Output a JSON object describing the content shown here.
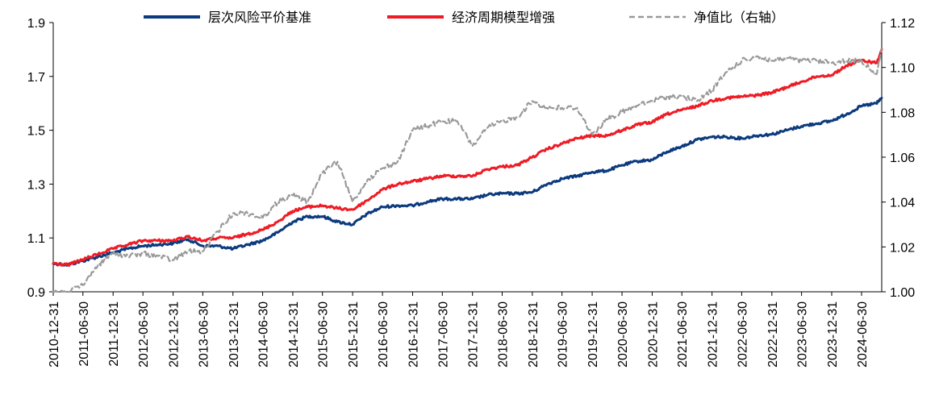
{
  "chart_data": {
    "type": "line",
    "title": "",
    "xlabel": "",
    "ylabel": "",
    "xlim": [
      "2010-12-31",
      "2024-10-31"
    ],
    "ylim": [
      0.9,
      1.9
    ],
    "y2lim": [
      1.0,
      1.12
    ],
    "grid": false,
    "legend_position": "top",
    "y_ticks": [
      "0.9",
      "1.1",
      "1.3",
      "1.5",
      "1.7",
      "1.9"
    ],
    "y2_ticks": [
      "1.00",
      "1.02",
      "1.04",
      "1.06",
      "1.08",
      "1.10",
      "1.12"
    ],
    "x_ticks": [
      "2010-12-31",
      "2011-06-30",
      "2011-12-31",
      "2012-06-30",
      "2012-12-31",
      "2013-06-30",
      "2013-12-31",
      "2014-06-30",
      "2014-12-31",
      "2015-06-30",
      "2015-12-31",
      "2016-06-30",
      "2016-12-31",
      "2017-06-30",
      "2017-12-31",
      "2018-06-30",
      "2018-12-31",
      "2019-06-30",
      "2019-12-31",
      "2020-06-30",
      "2020-12-31",
      "2021-06-30",
      "2021-12-31",
      "2022-06-30",
      "2022-12-31",
      "2023-06-30",
      "2023-12-31",
      "2024-06-30"
    ],
    "series": [
      {
        "name": "层次风险平价基准",
        "axis": "left",
        "color": "#0b3a7e",
        "style": "solid",
        "x": [
          "2010-12-31",
          "2011-03-31",
          "2011-06-30",
          "2011-09-30",
          "2011-12-31",
          "2012-03-31",
          "2012-06-30",
          "2012-09-30",
          "2012-12-31",
          "2013-03-31",
          "2013-06-30",
          "2013-09-30",
          "2013-12-31",
          "2014-03-31",
          "2014-06-30",
          "2014-09-30",
          "2014-12-31",
          "2015-03-31",
          "2015-06-30",
          "2015-09-30",
          "2015-12-31",
          "2016-03-31",
          "2016-06-30",
          "2016-09-30",
          "2016-12-31",
          "2017-03-31",
          "2017-06-30",
          "2017-09-30",
          "2017-12-31",
          "2018-03-31",
          "2018-06-30",
          "2018-09-30",
          "2018-12-31",
          "2019-03-31",
          "2019-06-30",
          "2019-09-30",
          "2019-12-31",
          "2020-03-31",
          "2020-06-30",
          "2020-09-30",
          "2020-12-31",
          "2021-03-31",
          "2021-06-30",
          "2021-09-30",
          "2021-12-31",
          "2022-03-31",
          "2022-06-30",
          "2022-09-30",
          "2022-12-31",
          "2023-03-31",
          "2023-06-30",
          "2023-09-30",
          "2023-12-31",
          "2024-03-31",
          "2024-06-30",
          "2024-09-30",
          "2024-10-31"
        ],
        "values": [
          1.005,
          1.0,
          1.015,
          1.03,
          1.045,
          1.06,
          1.07,
          1.075,
          1.08,
          1.095,
          1.07,
          1.07,
          1.06,
          1.075,
          1.09,
          1.12,
          1.16,
          1.18,
          1.18,
          1.16,
          1.15,
          1.19,
          1.215,
          1.22,
          1.22,
          1.235,
          1.245,
          1.245,
          1.245,
          1.26,
          1.265,
          1.265,
          1.27,
          1.3,
          1.32,
          1.33,
          1.345,
          1.35,
          1.37,
          1.385,
          1.39,
          1.42,
          1.44,
          1.465,
          1.475,
          1.475,
          1.47,
          1.48,
          1.485,
          1.5,
          1.515,
          1.525,
          1.535,
          1.56,
          1.59,
          1.6,
          1.62
        ]
      },
      {
        "name": "经济周期模型增强",
        "axis": "left",
        "color": "#ee1c25",
        "style": "solid",
        "x": [
          "2010-12-31",
          "2011-03-31",
          "2011-06-30",
          "2011-09-30",
          "2011-12-31",
          "2012-03-31",
          "2012-06-30",
          "2012-09-30",
          "2012-12-31",
          "2013-03-31",
          "2013-06-30",
          "2013-09-30",
          "2013-12-31",
          "2014-03-31",
          "2014-06-30",
          "2014-09-30",
          "2014-12-31",
          "2015-03-31",
          "2015-06-30",
          "2015-09-30",
          "2015-12-31",
          "2016-03-31",
          "2016-06-30",
          "2016-09-30",
          "2016-12-31",
          "2017-03-31",
          "2017-06-30",
          "2017-09-30",
          "2017-12-31",
          "2018-03-31",
          "2018-06-30",
          "2018-09-30",
          "2018-12-31",
          "2019-03-31",
          "2019-06-30",
          "2019-09-30",
          "2019-12-31",
          "2020-03-31",
          "2020-06-30",
          "2020-09-30",
          "2020-12-31",
          "2021-03-31",
          "2021-06-30",
          "2021-09-30",
          "2021-12-31",
          "2022-03-31",
          "2022-06-30",
          "2022-09-30",
          "2022-12-31",
          "2023-03-31",
          "2023-06-30",
          "2023-09-30",
          "2023-12-31",
          "2024-03-31",
          "2024-06-30",
          "2024-09-30",
          "2024-10-31"
        ],
        "values": [
          1.005,
          1.0,
          1.02,
          1.04,
          1.06,
          1.075,
          1.09,
          1.09,
          1.09,
          1.105,
          1.09,
          1.1,
          1.1,
          1.115,
          1.13,
          1.16,
          1.2,
          1.215,
          1.22,
          1.21,
          1.205,
          1.24,
          1.28,
          1.3,
          1.31,
          1.32,
          1.33,
          1.33,
          1.33,
          1.355,
          1.365,
          1.37,
          1.4,
          1.43,
          1.45,
          1.47,
          1.48,
          1.48,
          1.5,
          1.52,
          1.53,
          1.56,
          1.575,
          1.59,
          1.61,
          1.62,
          1.625,
          1.63,
          1.64,
          1.66,
          1.68,
          1.7,
          1.705,
          1.74,
          1.76,
          1.75,
          1.8
        ]
      },
      {
        "name": "净值比（右轴）",
        "axis": "right",
        "color": "#999999",
        "style": "dashed",
        "x": [
          "2010-12-31",
          "2011-03-31",
          "2011-06-30",
          "2011-09-30",
          "2011-12-31",
          "2012-03-31",
          "2012-06-30",
          "2012-09-30",
          "2012-12-31",
          "2013-03-31",
          "2013-06-30",
          "2013-09-30",
          "2013-12-31",
          "2014-03-31",
          "2014-06-30",
          "2014-09-30",
          "2014-12-31",
          "2015-03-31",
          "2015-06-30",
          "2015-09-30",
          "2015-12-31",
          "2016-03-31",
          "2016-06-30",
          "2016-09-30",
          "2016-12-31",
          "2017-03-31",
          "2017-06-30",
          "2017-09-30",
          "2017-12-31",
          "2018-03-31",
          "2018-06-30",
          "2018-09-30",
          "2018-12-31",
          "2019-03-31",
          "2019-06-30",
          "2019-09-30",
          "2019-12-31",
          "2020-03-31",
          "2020-06-30",
          "2020-09-30",
          "2020-12-31",
          "2021-03-31",
          "2021-06-30",
          "2021-09-30",
          "2021-12-31",
          "2022-03-31",
          "2022-06-30",
          "2022-09-30",
          "2022-12-31",
          "2023-03-31",
          "2023-06-30",
          "2023-09-30",
          "2023-12-31",
          "2024-03-31",
          "2024-06-30",
          "2024-09-30",
          "2024-10-31"
        ],
        "values": [
          1.0,
          1.0,
          1.003,
          1.012,
          1.017,
          1.016,
          1.017,
          1.016,
          1.014,
          1.018,
          1.018,
          1.027,
          1.035,
          1.035,
          1.033,
          1.04,
          1.043,
          1.04,
          1.053,
          1.058,
          1.04,
          1.05,
          1.055,
          1.058,
          1.072,
          1.074,
          1.076,
          1.076,
          1.065,
          1.073,
          1.076,
          1.078,
          1.085,
          1.082,
          1.082,
          1.082,
          1.07,
          1.077,
          1.08,
          1.083,
          1.085,
          1.087,
          1.087,
          1.085,
          1.09,
          1.098,
          1.103,
          1.105,
          1.103,
          1.104,
          1.103,
          1.103,
          1.102,
          1.103,
          1.103,
          1.097,
          1.108
        ]
      }
    ]
  }
}
